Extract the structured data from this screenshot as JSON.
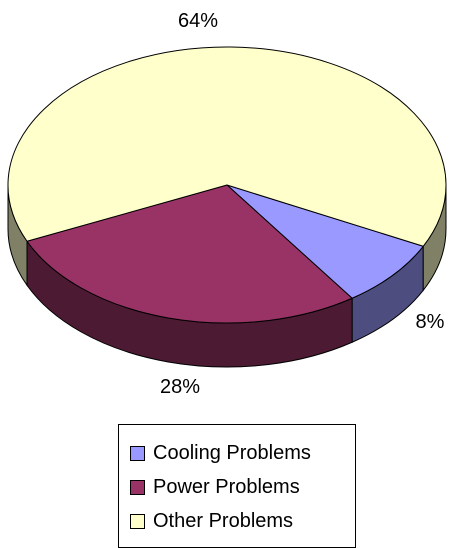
{
  "chart_data": {
    "type": "pie",
    "style": "3d",
    "categories": [
      "Cooling Problems",
      "Power Problems",
      "Other Problems"
    ],
    "values": [
      8,
      28,
      64
    ],
    "data_labels": [
      "8%",
      "28%",
      "64%"
    ],
    "colors": [
      "#9999ff",
      "#993366",
      "#ffffcc"
    ],
    "side_colors": [
      "#4d4d80",
      "#4d1a33",
      "#808066"
    ],
    "legend": {
      "position": "bottom",
      "entries": [
        "Cooling Problems",
        "Power Problems",
        "Other Problems"
      ]
    }
  }
}
